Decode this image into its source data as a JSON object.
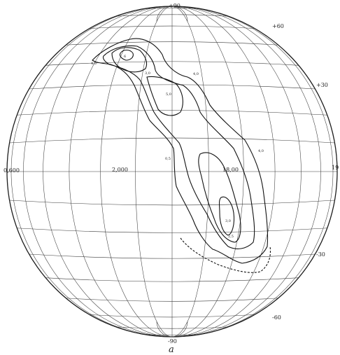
{
  "figure": {
    "caption": "a",
    "latitude_labels": {
      "north_pole": "+90",
      "south_pole": "-90",
      "p60": "+60",
      "p30": "+30",
      "m30": "-30",
      "m60": "-60"
    },
    "longitude_labels": {
      "left": "0,600",
      "mid_left": "2,000",
      "mid_right": "18,00",
      "right": "19"
    },
    "contour_labels": {
      "peak": "6",
      "upper_left": "4,5",
      "upper_mid": "3,0",
      "upper_right": "4,0",
      "mid": "5,0",
      "equator_left": "0,5",
      "mid_right": "4,0",
      "lower": "3,0",
      "lower_mid": "2,5"
    }
  }
}
